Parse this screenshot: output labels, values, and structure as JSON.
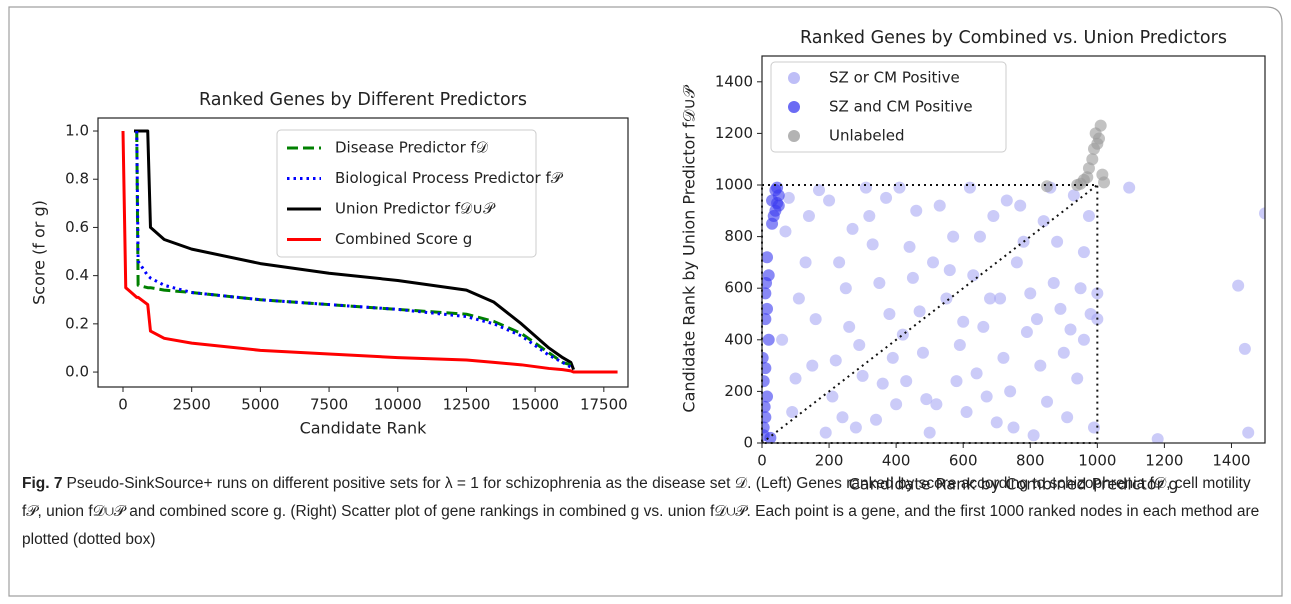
{
  "chart_data": [
    {
      "type": "line",
      "title": "Ranked Genes by Different Predictors",
      "xlabel": "Candidate Rank",
      "ylabel": "Score (f or g)",
      "x": [
        0,
        100,
        400,
        500,
        550,
        900,
        1000,
        1500,
        2500,
        5000,
        7500,
        10000,
        12500,
        13500,
        14500,
        15500,
        16000,
        16300,
        16400,
        18000
      ],
      "series": [
        {
          "name": "Disease Predictor f𝒟",
          "color": "#008000",
          "style": "dashed",
          "values": [
            null,
            null,
            null,
            1.0,
            0.36,
            0.35,
            0.35,
            0.34,
            0.33,
            0.3,
            0.28,
            0.26,
            0.24,
            0.21,
            0.16,
            0.08,
            0.04,
            0.03,
            null,
            null
          ]
        },
        {
          "name": "Biological Process Predictor f𝒫",
          "color": "#0000ff",
          "style": "dotted",
          "values": [
            null,
            null,
            null,
            1.0,
            0.46,
            0.4,
            0.39,
            0.36,
            0.33,
            0.3,
            0.28,
            0.26,
            0.23,
            0.2,
            0.15,
            0.07,
            0.04,
            0.02,
            null,
            null
          ]
        },
        {
          "name": "Union Predictor f𝒟∪𝒫",
          "color": "#000000",
          "style": "solid",
          "values": [
            null,
            null,
            1.0,
            1.0,
            1.0,
            1.0,
            0.6,
            0.55,
            0.51,
            0.45,
            0.41,
            0.38,
            0.34,
            0.29,
            0.2,
            0.1,
            0.06,
            0.04,
            0.01,
            null
          ]
        },
        {
          "name": "Combined Score g",
          "color": "#ff0000",
          "style": "solid",
          "values": [
            1.0,
            0.35,
            0.32,
            0.31,
            0.31,
            0.28,
            0.17,
            0.14,
            0.12,
            0.09,
            0.075,
            0.06,
            0.05,
            0.04,
            0.03,
            0.015,
            0.01,
            0.005,
            0,
            0
          ]
        }
      ],
      "xlim": [
        -910,
        18380
      ],
      "xticks": [
        0,
        2500,
        5000,
        7500,
        10000,
        12500,
        15000,
        17500
      ],
      "ylim": [
        -0.062,
        1.054
      ],
      "yticks": [
        {
          "value": 0,
          "label": "0.0"
        },
        0.2,
        0.4,
        0.6,
        0.8,
        {
          "value": 1,
          "label": "1.0"
        }
      ],
      "legend": "upper right"
    },
    {
      "type": "scatter",
      "title": "Ranked Genes by Combined vs. Union Predictors",
      "xlabel": "Candidate Rank by Combined Predictor g",
      "ylabel": "Candidate Rank by Union Predictor f𝒟∪𝒫",
      "series": [
        {
          "name": "SZ or CM Positive",
          "color": "#a8a8f4",
          "x": [
            70,
            110,
            150,
            90,
            200,
            230,
            260,
            210,
            280,
            320,
            350,
            390,
            340,
            410,
            440,
            470,
            430,
            500,
            530,
            560,
            590,
            520,
            620,
            650,
            680,
            640,
            700,
            730,
            760,
            790,
            740,
            810,
            840,
            870,
            900,
            850,
            930,
            960,
            980,
            940,
            990,
            60,
            130,
            170,
            190,
            250,
            300,
            330,
            380,
            400,
            460,
            480,
            550,
            570,
            610,
            660,
            690,
            720,
            770,
            800,
            830,
            880,
            910,
            950,
            975,
            100,
            160,
            220,
            270,
            310,
            360,
            450,
            510,
            580,
            630,
            710,
            750,
            820,
            890,
            960,
            80,
            140,
            240,
            290,
            370,
            420,
            490,
            600,
            670,
            780,
            860,
            920,
            1000,
            1000,
            1095,
            1180,
            1420,
            1440,
            1450,
            1500
          ],
          "y": [
            820,
            560,
            300,
            120,
            940,
            700,
            450,
            180,
            60,
            880,
            620,
            330,
            90,
            990,
            760,
            510,
            240,
            40,
            920,
            670,
            380,
            150,
            990,
            800,
            560,
            270,
            80,
            940,
            700,
            430,
            200,
            30,
            860,
            620,
            350,
            160,
            960,
            740,
            500,
            250,
            60,
            400,
            700,
            980,
            40,
            600,
            260,
            770,
            500,
            150,
            900,
            350,
            560,
            800,
            120,
            450,
            880,
            330,
            920,
            580,
            300,
            780,
            100,
            600,
            880,
            250,
            480,
            320,
            830,
            990,
            230,
            640,
            700,
            240,
            650,
            560,
            60,
            480,
            520,
            400,
            950,
            880,
            100,
            380,
            950,
            420,
            170,
            470,
            180,
            780,
            990,
            440,
            480,
            580,
            990,
            15,
            610,
            365,
            40,
            890
          ]
        },
        {
          "name": "SZ and CM Positive",
          "color": "#3a3af0",
          "x": [
            5,
            10,
            15,
            5,
            10,
            20,
            10,
            15,
            10,
            20,
            15,
            30,
            40,
            45,
            50,
            40,
            45,
            30,
            5,
            25,
            12,
            8,
            35,
            50,
            2
          ],
          "y": [
            30,
            100,
            180,
            240,
            290,
            400,
            480,
            520,
            580,
            650,
            720,
            850,
            900,
            930,
            960,
            980,
            990,
            940,
            60,
            20,
            620,
            140,
            880,
            920,
            330
          ]
        },
        {
          "name": "Unlabeled",
          "color": "#9a9a9a",
          "x": [
            850,
            940,
            950,
            960,
            970,
            985,
            990,
            1000,
            995,
            1010,
            1005,
            1015,
            1020,
            975
          ],
          "y": [
            995,
            1000,
            1005,
            1020,
            1030,
            1100,
            1140,
            1160,
            1200,
            1230,
            1180,
            1040,
            1010,
            1065
          ]
        }
      ],
      "box": 1000,
      "xlim": [
        0,
        1500
      ],
      "xticks": [
        0,
        200,
        400,
        600,
        800,
        1000,
        1200,
        1400
      ],
      "ylim": [
        0,
        1500
      ],
      "yticks": [
        0,
        200,
        400,
        600,
        800,
        1000,
        1200,
        1400
      ],
      "legend": "upper left"
    }
  ],
  "caption": {
    "label": "Fig. 7",
    "text": "Pseudo-SinkSource+ runs on different positive sets for λ = 1 for schizophrenia as the disease set 𝒟. (Left) Genes ranked by score according to schizophrenia f𝒟, cell motility f𝒫, union f𝒟∪𝒫 and combined score g. (Right) Scatter plot of gene rankings in combined g vs. union f𝒟∪𝒫. Each point is a gene, and the first 1000 ranked nodes in each method are plotted (dotted box)"
  }
}
